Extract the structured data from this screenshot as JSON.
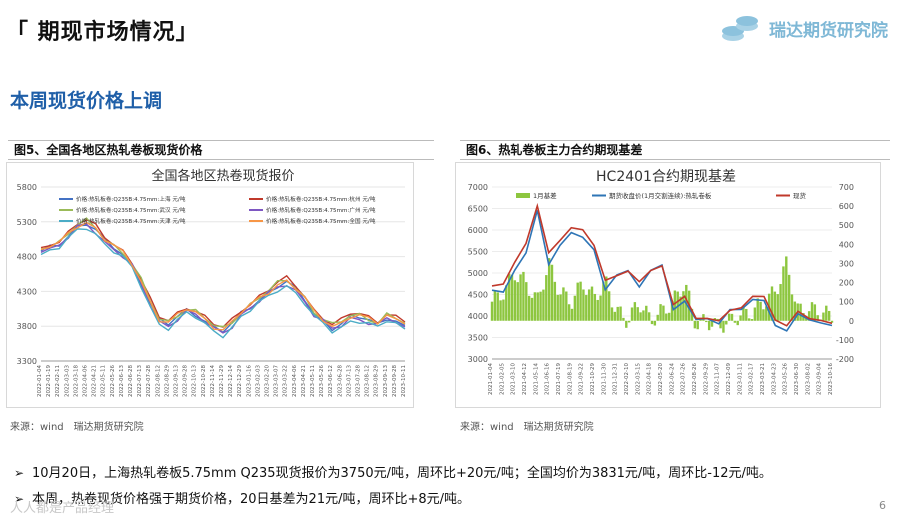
{
  "header": {
    "title": "「 期现市场情况」",
    "logo_text": "瑞达期货研究院"
  },
  "subtitle": "本周现货价格上调",
  "figure5": {
    "caption": "图5、全国各地区热轧卷板现货价格",
    "source": "来源：wind　瑞达期货研究院"
  },
  "figure6": {
    "caption": "图6、热轧卷板主力合约期现基差",
    "source": "来源：wind　瑞达期货研究院"
  },
  "bullets": [
    "10月20日，上海热轧卷板5.75mm Q235现货报价为3750元/吨，周环比+20元/吨；全国均价为3831元/吨，周环比-12元/吨。",
    "本周，热卷现货价格强于期货价格，20日基差为21元/吨，周环比+8元/吨。"
  ],
  "watermark": "人人都是产品经理",
  "page_number": "6",
  "chart_data": [
    {
      "type": "line",
      "title": "全国各地区热卷现货报价",
      "ylim": [
        3300,
        5800
      ],
      "yticks": [
        3300,
        3800,
        4300,
        4800,
        5300,
        5800
      ],
      "x_tick_labels": [
        "2022-01-04",
        "2022-01-19",
        "2022-02-11",
        "2022-03-03",
        "2022-03-18",
        "2022-04-06",
        "2022-04-21",
        "2022-05-11",
        "2022-05-26",
        "2022-06-13",
        "2022-06-28",
        "2022-07-13",
        "2022-07-28",
        "2022-08-12",
        "2022-08-29",
        "2022-09-13",
        "2022-09-28",
        "2022-10-13",
        "2022-10-28",
        "2022-11-14",
        "2022-11-29",
        "2022-12-14",
        "2022-12-29",
        "2023-01-16",
        "2023-02-03",
        "2023-02-20",
        "2023-03-07",
        "2023-03-22",
        "2023-04-06",
        "2023-04-21",
        "2023-05-11",
        "2023-05-26",
        "2023-06-12",
        "2023-06-28",
        "2023-07-13",
        "2023-07-28",
        "2023-08-12",
        "2023-08-29",
        "2023-09-13",
        "2023-09-28",
        "2023-10-11"
      ],
      "legend": [
        "价格:热轧板卷:Q235B:4.75mm:上海 元/吨",
        "价格:热轧板卷:Q235B:4.75mm:杭州 元/吨",
        "价格:热轧板卷:Q235B:4.75mm:武汉 元/吨",
        "价格:热轧板卷:Q235B:4.75mm:广州 元/吨",
        "价格:热轧板卷:Q235B:4.75mm:天津 元/吨",
        "价格:热轧板卷:Q235B:4.75mm:全国 元/吨"
      ],
      "colors": [
        "#4472c4",
        "#c0392b",
        "#9bbb59",
        "#7e57c2",
        "#4bacc6",
        "#f79646"
      ],
      "base_series": [
        4900,
        4950,
        5000,
        5120,
        5250,
        5300,
        5200,
        5050,
        4950,
        4850,
        4700,
        4450,
        4150,
        3900,
        3850,
        3950,
        4050,
        4000,
        3900,
        3800,
        3750,
        3850,
        4000,
        4100,
        4200,
        4300,
        4400,
        4450,
        4350,
        4200,
        4000,
        3900,
        3800,
        3850,
        3950,
        3950,
        3900,
        3850,
        3950,
        3900,
        3830
      ],
      "offsets": [
        -20,
        30,
        10,
        -40,
        -70,
        0
      ]
    },
    {
      "type": "line+bar",
      "title": "HC2401合约期现基差",
      "ylim_left": [
        3000,
        7000
      ],
      "yticks_left": [
        3000,
        3500,
        4000,
        4500,
        5000,
        5500,
        6000,
        6500,
        7000
      ],
      "ylim_right": [
        -200,
        700
      ],
      "yticks_right": [
        -200,
        -100,
        0,
        100,
        200,
        300,
        400,
        500,
        600,
        700
      ],
      "x_tick_labels": [
        "2021-01-04",
        "2021-02-05",
        "2021-03-10",
        "2021-04-12",
        "2021-05-14",
        "2021-06-16",
        "2021-07-19",
        "2021-08-19",
        "2021-09-22",
        "2021-10-29",
        "2021-11-30",
        "2021-12-31",
        "2022-02-10",
        "2022-03-15",
        "2022-04-18",
        "2022-05-20",
        "2022-06-24",
        "2022-07-26",
        "2022-08-26",
        "2022-09-29",
        "2022-11-07",
        "2022-12-09",
        "2023-01-11",
        "2023-02-17",
        "2023-03-21",
        "2023-04-23",
        "2023-05-26",
        "2023-06-30",
        "2023-08-02",
        "2023-09-04",
        "2023-10-16"
      ],
      "legend": [
        "1月基差",
        "期货收盘价(1月交割连续):热轧卷板",
        "现货"
      ],
      "colors": [
        "#8dc63f",
        "#2e75b6",
        "#c0392b"
      ],
      "futures": [
        4600,
        4500,
        5100,
        5500,
        6400,
        5200,
        5700,
        5900,
        5800,
        5600,
        4600,
        4900,
        5100,
        4700,
        5000,
        5200,
        4200,
        4300,
        3900,
        4000,
        3800,
        4100,
        4200,
        4400,
        4300,
        3800,
        3700,
        4000,
        3900,
        3900,
        3780
      ],
      "spot": [
        4700,
        4700,
        5300,
        5700,
        6500,
        5500,
        5800,
        6000,
        6000,
        5700,
        4800,
        4900,
        5100,
        4800,
        5000,
        5200,
        4300,
        4400,
        3950,
        4000,
        3850,
        4100,
        4250,
        4450,
        4400,
        3950,
        3800,
        4050,
        3950,
        3950,
        3831
      ],
      "basis": [
        100,
        150,
        250,
        200,
        100,
        300,
        150,
        100,
        200,
        120,
        200,
        50,
        0,
        100,
        0,
        50,
        100,
        200,
        -20,
        0,
        -30,
        0,
        30,
        50,
        100,
        150,
        300,
        50,
        60,
        50,
        21
      ]
    }
  ]
}
